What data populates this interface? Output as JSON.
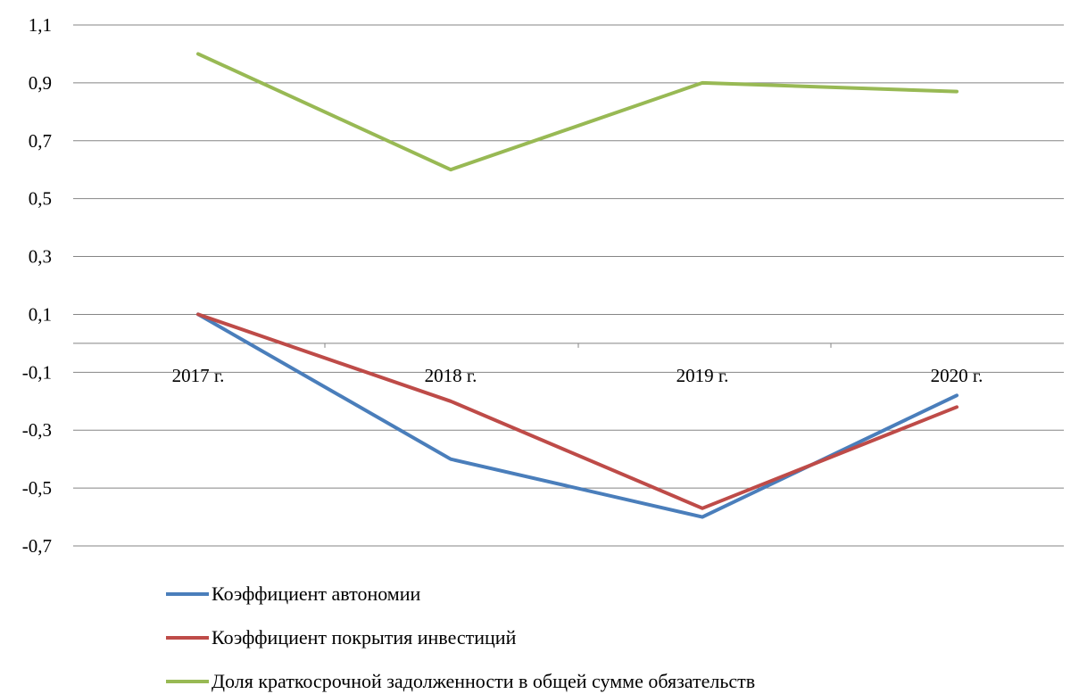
{
  "chart_data": {
    "type": "line",
    "title": "",
    "xlabel": "",
    "ylabel": "",
    "categories": [
      "2017 г.",
      "2018 г.",
      "2019 г.",
      "2020 г."
    ],
    "y_ticks": [
      "1,1",
      "0,9",
      "0,7",
      "0,5",
      "0,3",
      "0,1",
      "-0,1",
      "-0,3",
      "-0,5",
      "-0,7"
    ],
    "ylim": [
      -0.7,
      1.1
    ],
    "grid": true,
    "legend_position": "bottom",
    "series": [
      {
        "name": "Коэффициент автономии",
        "color": "#4a7ebb",
        "values": [
          0.1,
          -0.4,
          -0.6,
          -0.18
        ]
      },
      {
        "name": "Коэффициент покрытия инвестиций",
        "color": "#be4b48",
        "values": [
          0.1,
          -0.2,
          -0.57,
          -0.22
        ]
      },
      {
        "name": "Доля краткосрочной задолженности в общей сумме обязательств",
        "color": "#98b954",
        "values": [
          1.0,
          0.6,
          0.9,
          0.87
        ]
      }
    ]
  }
}
